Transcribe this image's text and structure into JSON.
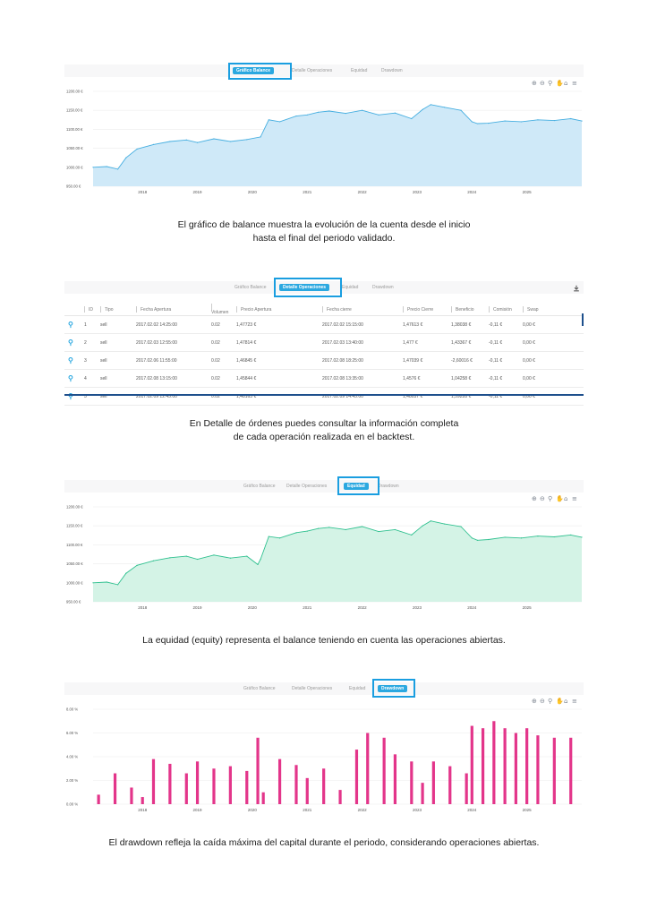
{
  "tabs": [
    "Gráfico Balance",
    "Detalle Operaciones",
    "Equidad",
    "Drawdown"
  ],
  "colors": {
    "accent": "#2ba8e0",
    "highlight": "#1a9ee0",
    "balance_fill": "#cfe9f8",
    "balance_line": "#45aee0",
    "equity_fill": "#d4f3e6",
    "equity_line": "#2fc08f",
    "drawdown": "#e3358a"
  },
  "toolbar_icons": [
    "zoom-in-icon",
    "zoom-out-icon",
    "magnify-icon",
    "pan-hand-icon",
    "home-icon",
    "menu-icon"
  ],
  "sections": [
    {
      "active_tab": 0,
      "caption_lines": [
        "El gráfico de balance muestra la evolución de la cuenta desde el inicio",
        "hasta el final del periodo validado."
      ]
    },
    {
      "active_tab": 1,
      "caption_lines": [
        "En Detalle de órdenes puedes consultar la información completa",
        "de cada operación realizada en el backtest."
      ]
    },
    {
      "active_tab": 2,
      "caption_lines": [
        "La equidad (equity) representa el balance teniendo en cuenta las operaciones abiertas."
      ]
    },
    {
      "active_tab": 3,
      "caption_lines": [
        "El drawdown refleja la caída máxima del capital durante el periodo, considerando operaciones abiertas."
      ]
    }
  ],
  "table": {
    "headers": [
      "ID",
      "Tipo",
      "Fecha Apertura",
      "Volumen",
      "Precio Apertura",
      "Fecha cierre",
      "Precio Cierre",
      "Beneficio",
      "Comisión",
      "Swap"
    ],
    "rows": [
      [
        "1",
        "sell",
        "2017.02.02 14:25:00",
        "0.02",
        "1,47723 €",
        "2017.02.02 15:15:00",
        "1,47613 €",
        "1,38038 €",
        "-0,11 €",
        "0,00 €"
      ],
      [
        "2",
        "sell",
        "2017.02.03 12:55:00",
        "0.02",
        "1,47814 €",
        "2017.02.03 13:40:00",
        "1,477 €",
        "1,43367 €",
        "-0,11 €",
        "0,00 €"
      ],
      [
        "3",
        "sell",
        "2017.02.06 11:55:00",
        "0.02",
        "1,46845 €",
        "2017.02.08 18:25:00",
        "1,47039 €",
        "-2,60016 €",
        "-0,11 €",
        "0,00 €"
      ],
      [
        "4",
        "sell",
        "2017.02.08 13:15:00",
        "0.02",
        "1,45844 €",
        "2017.02.08 13:35:00",
        "1,4576 €",
        "1,04258 €",
        "-0,11 €",
        "0,00 €"
      ],
      [
        "5",
        "sell",
        "2017.02.09 12:45:00",
        "0.02",
        "1,48163 €",
        "2017.02.09 14:45:00",
        "1,48037 €",
        "1,59228 €",
        "-0,11 €",
        "0,00 €"
      ]
    ]
  },
  "chart_data": [
    {
      "type": "area",
      "title": "Gráfico Balance",
      "ylim": [
        950,
        1200
      ],
      "y_ticks": [
        "1200.00 €",
        "1150.00 €",
        "1100.00 €",
        "1050.00 €",
        "1000.00 €",
        "950.00 €"
      ],
      "x_ticks": [
        "2018",
        "2019",
        "2020",
        "2021",
        "2022",
        "2023",
        "2024",
        "2025"
      ],
      "xlim": [
        2017.1,
        2026.0
      ],
      "grid": true,
      "x": [
        2017.1,
        2017.35,
        2017.55,
        2017.7,
        2017.9,
        2018.2,
        2018.5,
        2018.8,
        2019.0,
        2019.3,
        2019.6,
        2019.9,
        2020.15,
        2020.3,
        2020.5,
        2020.8,
        2021.0,
        2021.2,
        2021.4,
        2021.7,
        2022.0,
        2022.3,
        2022.6,
        2022.9,
        2023.1,
        2023.25,
        2023.5,
        2023.8,
        2024.0,
        2024.1,
        2024.3,
        2024.6,
        2024.9,
        2025.2,
        2025.5,
        2025.8,
        2026.0
      ],
      "values": [
        1000,
        1002,
        995,
        1025,
        1048,
        1060,
        1068,
        1072,
        1065,
        1075,
        1068,
        1073,
        1080,
        1125,
        1120,
        1135,
        1138,
        1145,
        1148,
        1142,
        1150,
        1138,
        1143,
        1128,
        1152,
        1165,
        1158,
        1150,
        1120,
        1115,
        1116,
        1122,
        1120,
        1125,
        1123,
        1128,
        1122
      ]
    },
    {
      "type": "area",
      "title": "Equidad",
      "ylim": [
        950,
        1200
      ],
      "y_ticks": [
        "1200.00 €",
        "1150.00 €",
        "1100.00 €",
        "1050.00 €",
        "1000.00 €",
        "950.00 €"
      ],
      "x_ticks": [
        "2018",
        "2019",
        "2020",
        "2021",
        "2022",
        "2023",
        "2024",
        "2025"
      ],
      "xlim": [
        2017.1,
        2026.0
      ],
      "grid": true,
      "x": [
        2017.1,
        2017.35,
        2017.55,
        2017.7,
        2017.9,
        2018.2,
        2018.5,
        2018.8,
        2019.0,
        2019.3,
        2019.6,
        2019.9,
        2020.1,
        2020.15,
        2020.3,
        2020.5,
        2020.8,
        2021.0,
        2021.2,
        2021.4,
        2021.7,
        2022.0,
        2022.3,
        2022.6,
        2022.9,
        2023.1,
        2023.25,
        2023.5,
        2023.8,
        2024.0,
        2024.1,
        2024.3,
        2024.6,
        2024.9,
        2025.2,
        2025.5,
        2025.8,
        2026.0
      ],
      "values": [
        1000,
        1002,
        995,
        1025,
        1046,
        1058,
        1066,
        1070,
        1062,
        1073,
        1065,
        1070,
        1048,
        1062,
        1122,
        1118,
        1132,
        1136,
        1143,
        1146,
        1140,
        1148,
        1135,
        1140,
        1126,
        1150,
        1163,
        1155,
        1148,
        1118,
        1112,
        1114,
        1120,
        1118,
        1123,
        1121,
        1126,
        1120
      ]
    },
    {
      "type": "bar",
      "title": "Drawdown",
      "ylim": [
        0,
        8
      ],
      "y_ticks": [
        "8.00 %",
        "6.00 %",
        "4.00 %",
        "2.00 %",
        "0.00 %"
      ],
      "x_ticks": [
        "2018",
        "2019",
        "2020",
        "2021",
        "2022",
        "2023",
        "2024",
        "2025"
      ],
      "xlim": [
        2017.1,
        2026.0
      ],
      "grid": true,
      "x": [
        2017.2,
        2017.5,
        2017.8,
        2018.0,
        2018.2,
        2018.5,
        2018.8,
        2019.0,
        2019.3,
        2019.6,
        2019.9,
        2020.1,
        2020.2,
        2020.5,
        2020.8,
        2021.0,
        2021.3,
        2021.6,
        2021.9,
        2022.1,
        2022.4,
        2022.6,
        2022.9,
        2023.1,
        2023.3,
        2023.6,
        2023.9,
        2024.0,
        2024.2,
        2024.4,
        2024.6,
        2024.8,
        2025.0,
        2025.2,
        2025.5,
        2025.8
      ],
      "values": [
        0.8,
        2.6,
        1.4,
        0.6,
        3.8,
        3.4,
        2.6,
        3.6,
        3.0,
        3.2,
        2.8,
        5.6,
        1.0,
        3.8,
        3.3,
        2.2,
        3.0,
        1.2,
        4.6,
        6.0,
        5.6,
        4.2,
        3.6,
        1.8,
        3.6,
        3.2,
        2.6,
        6.6,
        6.4,
        7.0,
        6.4,
        6.0,
        6.4,
        5.8,
        5.6,
        5.6
      ]
    }
  ]
}
